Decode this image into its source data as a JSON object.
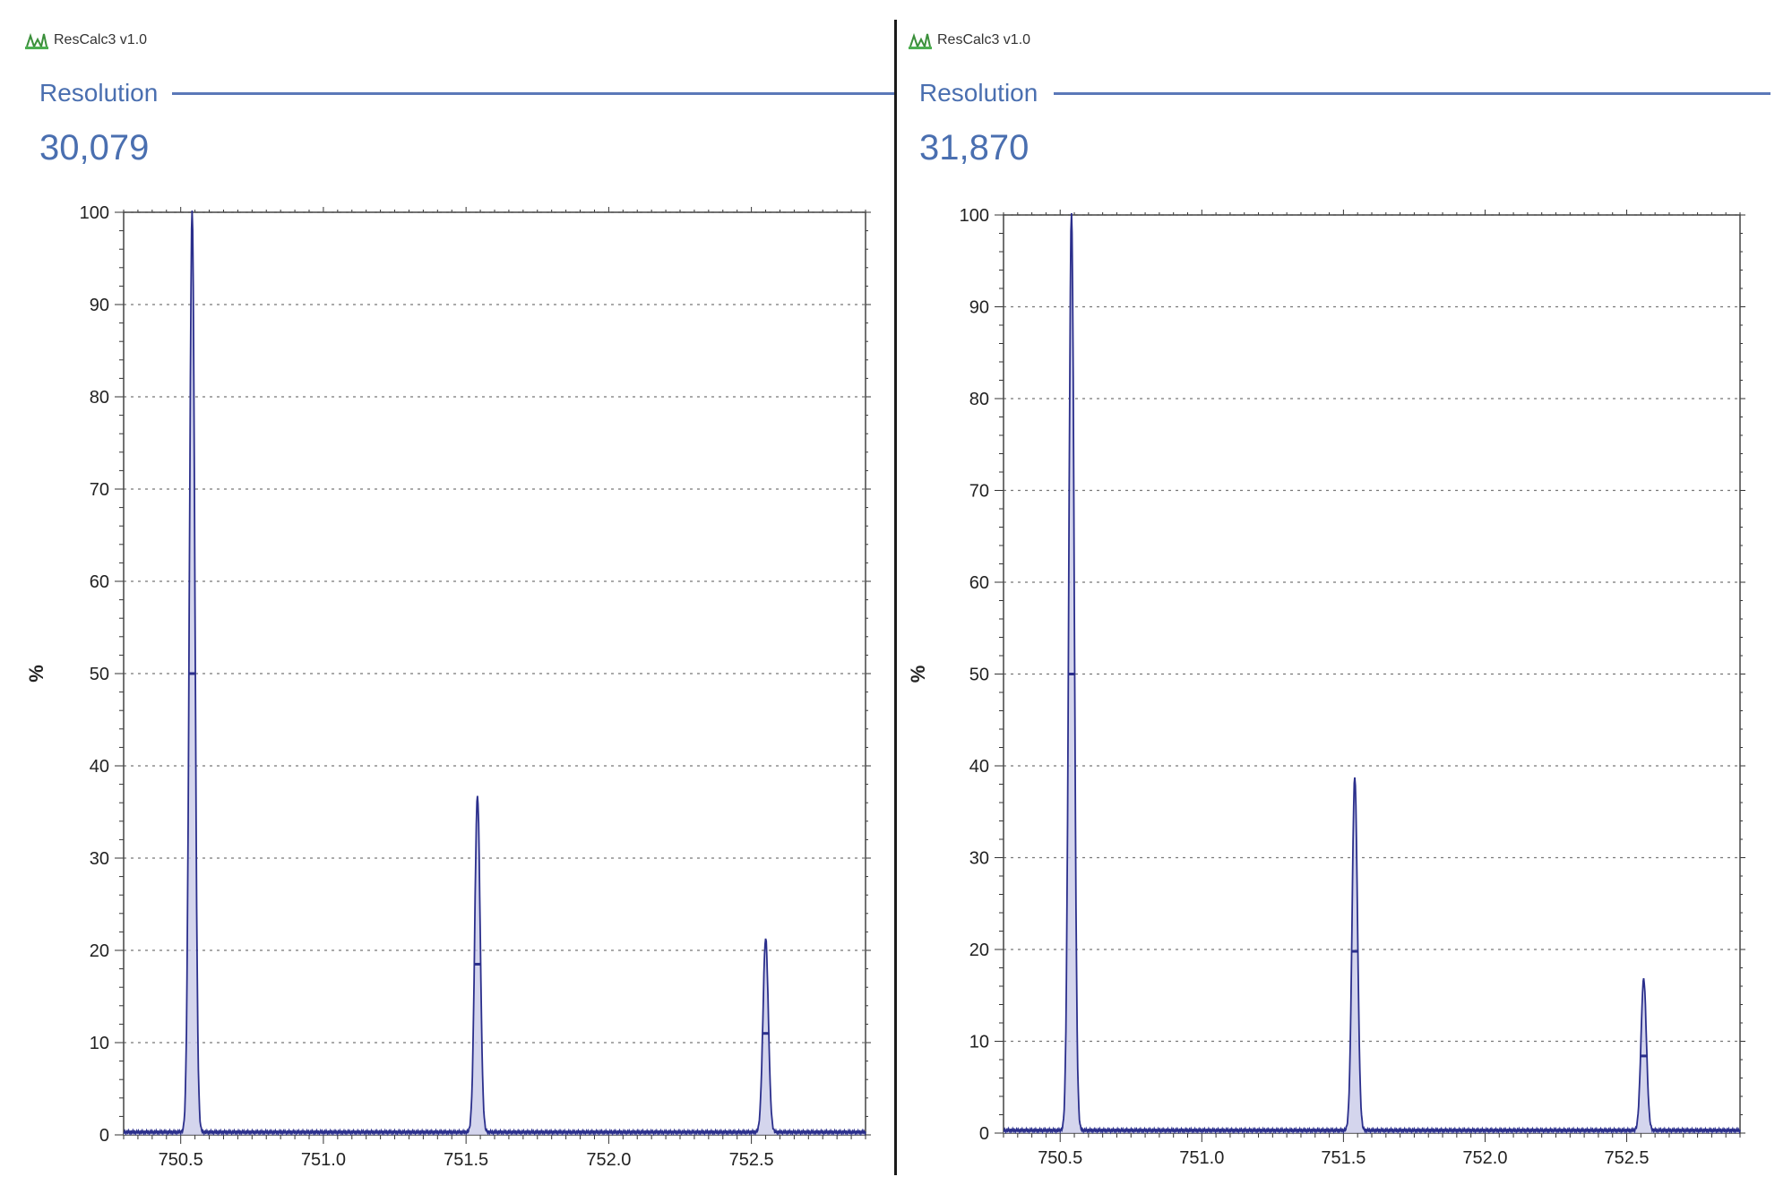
{
  "panels": [
    {
      "app_title": "ResCalc3 v1.0",
      "resolution_label": "Resolution",
      "resolution_value": "30,079"
    },
    {
      "app_title": "ResCalc3 v1.0",
      "resolution_label": "Resolution",
      "resolution_value": "31,870"
    }
  ],
  "colors": {
    "accent": "#4a6fb0",
    "trace": "#2b2f8c",
    "trace_fill": "#c9cbe8"
  },
  "chart_data": [
    {
      "type": "line",
      "xlabel": "",
      "ylabel": "%",
      "xlim": [
        750.3,
        752.9
      ],
      "ylim": [
        0,
        100
      ],
      "x_ticks": [
        "750.5",
        "751.0",
        "751.5",
        "752.0",
        "752.5"
      ],
      "y_ticks": [
        "0",
        "10",
        "20",
        "30",
        "40",
        "50",
        "60",
        "70",
        "80",
        "90",
        "100"
      ],
      "grid": "horizontal-dotted",
      "peaks": [
        {
          "x": 750.54,
          "height": 100,
          "half_height": 50
        },
        {
          "x": 751.54,
          "height": 36.5,
          "half_height": 18.5
        },
        {
          "x": 752.55,
          "height": 21,
          "half_height": 11
        }
      ]
    },
    {
      "type": "line",
      "xlabel": "",
      "ylabel": "%",
      "xlim": [
        750.3,
        752.9
      ],
      "ylim": [
        0,
        100
      ],
      "x_ticks": [
        "750.5",
        "751.0",
        "751.5",
        "752.0",
        "752.5"
      ],
      "y_ticks": [
        "0",
        "10",
        "20",
        "30",
        "40",
        "50",
        "60",
        "70",
        "80",
        "90",
        "100"
      ],
      "grid": "horizontal-dotted",
      "peaks": [
        {
          "x": 750.54,
          "height": 100,
          "half_height": 50
        },
        {
          "x": 751.54,
          "height": 38.5,
          "half_height": 19.8
        },
        {
          "x": 752.56,
          "height": 16.5,
          "half_height": 8.4
        }
      ]
    }
  ]
}
